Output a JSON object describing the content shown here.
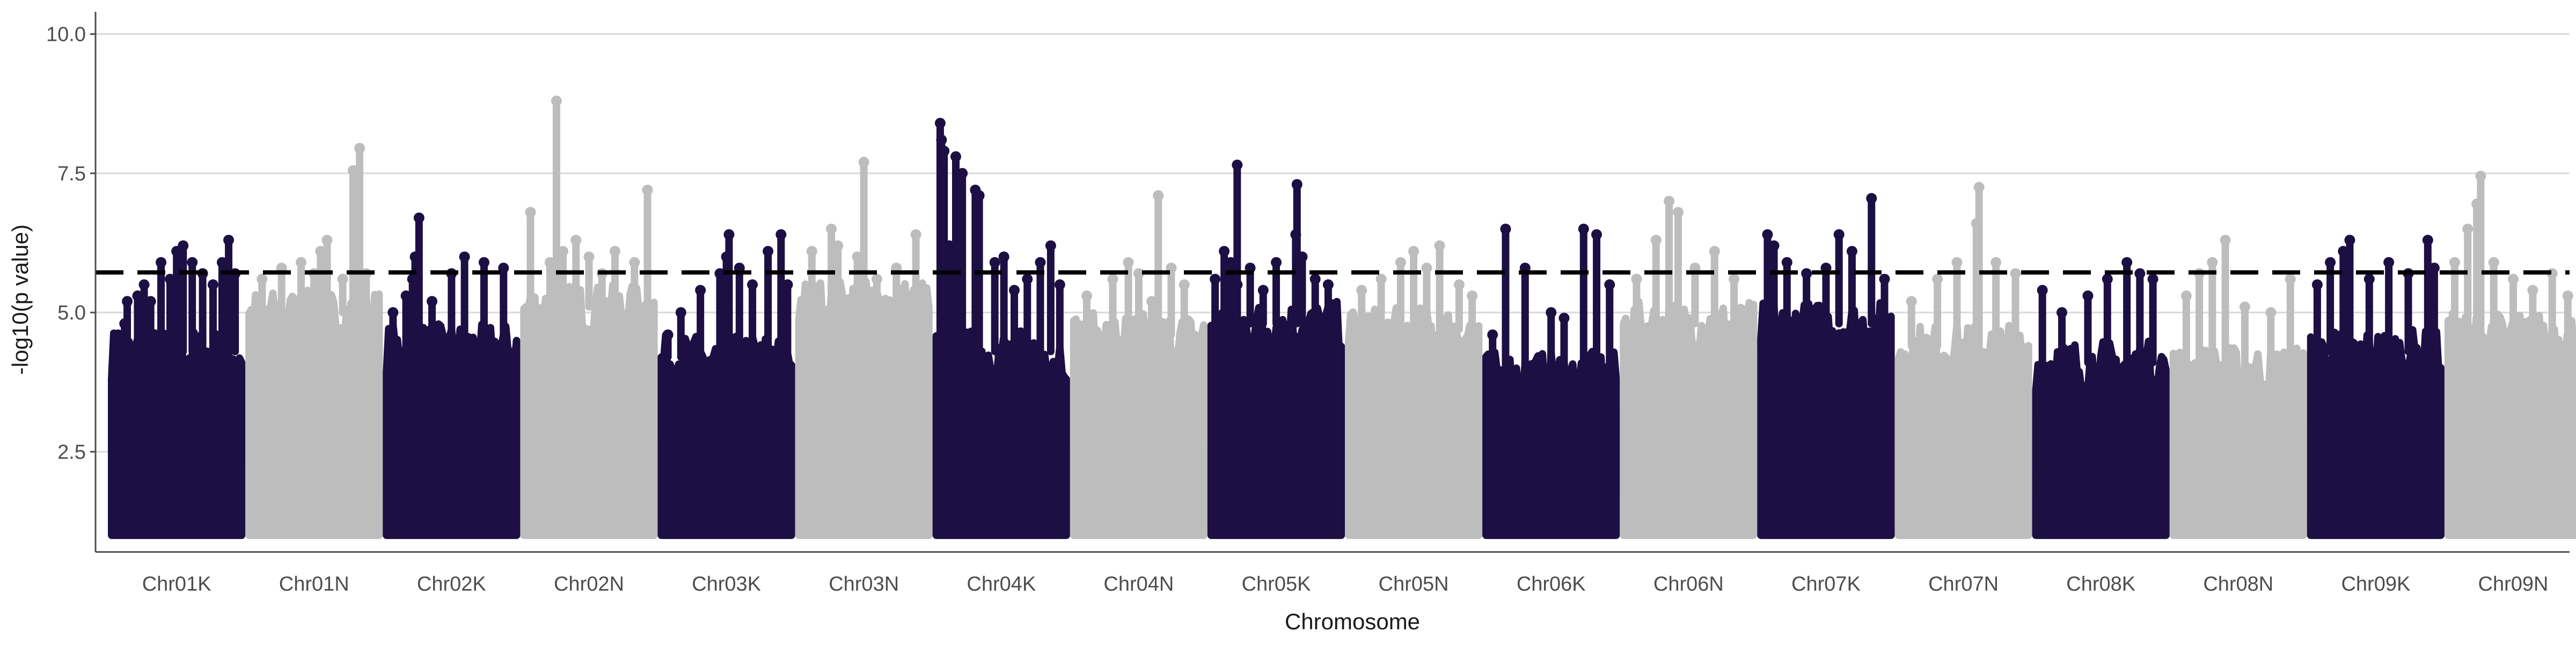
{
  "chart_data": {
    "type": "scatter",
    "subtype": "manhattan",
    "title": "",
    "xlabel": "Chromosome",
    "ylabel": "-log10(p value)",
    "ylim": [
      0.7,
      10.4
    ],
    "yticks": [
      2.5,
      5.0,
      7.5,
      10.0
    ],
    "ytick_labels": [
      "2.5",
      "5.0",
      "7.5",
      "10.0"
    ],
    "grid": "horizontal major gridlines on",
    "legend": "none",
    "colors": {
      "K": "#1c0f43",
      "N": "#bdbdbd",
      "threshold_line": "#000000",
      "grid": "#d9d9d9",
      "axis": "#4d4d4d"
    },
    "threshold": {
      "value": 5.72,
      "style": "dashed"
    },
    "floor": 1.0,
    "chromosomes": [
      {
        "label": "Chr01K",
        "group": "K",
        "body": 4.3,
        "hits": [
          [
            0.05,
            4.6
          ],
          [
            0.1,
            4.8
          ],
          [
            0.12,
            5.2
          ],
          [
            0.2,
            5.3
          ],
          [
            0.25,
            5.5
          ],
          [
            0.3,
            5.2
          ],
          [
            0.38,
            5.9
          ],
          [
            0.45,
            5.6
          ],
          [
            0.5,
            6.1
          ],
          [
            0.55,
            6.2
          ],
          [
            0.62,
            5.9
          ],
          [
            0.7,
            5.7
          ],
          [
            0.78,
            5.5
          ],
          [
            0.85,
            5.9
          ],
          [
            0.9,
            6.3
          ],
          [
            0.95,
            5.7
          ]
        ]
      },
      {
        "label": "Chr01N",
        "group": "N",
        "body": 5.0,
        "hits": [
          [
            0.1,
            5.6
          ],
          [
            0.25,
            5.8
          ],
          [
            0.4,
            5.9
          ],
          [
            0.5,
            5.7
          ],
          [
            0.55,
            6.1
          ],
          [
            0.6,
            6.3
          ],
          [
            0.72,
            5.6
          ],
          [
            0.8,
            7.55
          ],
          [
            0.85,
            7.95
          ],
          [
            0.9,
            5.7
          ]
        ]
      },
      {
        "label": "Chr02K",
        "group": "K",
        "body": 4.4,
        "hits": [
          [
            0.05,
            5.0
          ],
          [
            0.15,
            5.3
          ],
          [
            0.2,
            5.6
          ],
          [
            0.22,
            6.0
          ],
          [
            0.25,
            6.7
          ],
          [
            0.35,
            5.2
          ],
          [
            0.5,
            5.7
          ],
          [
            0.6,
            6.0
          ],
          [
            0.75,
            5.9
          ],
          [
            0.9,
            5.8
          ]
        ]
      },
      {
        "label": "Chr02N",
        "group": "N",
        "body": 5.1,
        "hits": [
          [
            0.05,
            6.8
          ],
          [
            0.2,
            5.9
          ],
          [
            0.3,
            6.1
          ],
          [
            0.4,
            6.3
          ],
          [
            0.5,
            6.0
          ],
          [
            0.6,
            5.7
          ],
          [
            0.7,
            6.1
          ],
          [
            0.85,
            5.9
          ],
          [
            0.95,
            7.2
          ]
        ]
      },
      {
        "label": "Chr02N",
        "group": "N",
        "skip": true,
        "body": 0,
        "hits": [
          [
            0.25,
            8.8
          ]
        ]
      },
      {
        "label": "Chr03K",
        "group": "K",
        "body": 4.2,
        "hits": [
          [
            0.05,
            4.6
          ],
          [
            0.15,
            5.0
          ],
          [
            0.3,
            5.4
          ],
          [
            0.45,
            5.7
          ],
          [
            0.5,
            6.0
          ],
          [
            0.52,
            6.4
          ],
          [
            0.6,
            5.8
          ],
          [
            0.7,
            5.5
          ],
          [
            0.82,
            6.1
          ],
          [
            0.92,
            6.4
          ],
          [
            0.97,
            5.5
          ]
        ]
      },
      {
        "label": "Chr03N",
        "group": "N",
        "body": 5.2,
        "hits": [
          [
            0.1,
            6.1
          ],
          [
            0.25,
            6.5
          ],
          [
            0.3,
            6.2
          ],
          [
            0.45,
            6.0
          ],
          [
            0.5,
            7.7
          ],
          [
            0.6,
            5.6
          ],
          [
            0.75,
            5.8
          ],
          [
            0.9,
            6.4
          ]
        ]
      },
      {
        "label": "Chr04K",
        "group": "K",
        "body": 4.3,
        "hits": [
          [
            0.03,
            8.4
          ],
          [
            0.04,
            8.1
          ],
          [
            0.06,
            7.9
          ],
          [
            0.1,
            6.2
          ],
          [
            0.15,
            7.8
          ],
          [
            0.2,
            7.5
          ],
          [
            0.3,
            7.2
          ],
          [
            0.33,
            7.1
          ],
          [
            0.45,
            5.9
          ],
          [
            0.52,
            6.0
          ],
          [
            0.6,
            5.4
          ],
          [
            0.7,
            5.6
          ],
          [
            0.8,
            5.9
          ],
          [
            0.88,
            6.2
          ],
          [
            0.95,
            5.5
          ]
        ]
      },
      {
        "label": "Chr04N",
        "group": "N",
        "body": 4.6,
        "hits": [
          [
            0.1,
            5.3
          ],
          [
            0.3,
            5.6
          ],
          [
            0.42,
            5.9
          ],
          [
            0.5,
            5.7
          ],
          [
            0.6,
            5.2
          ],
          [
            0.65,
            7.1
          ],
          [
            0.75,
            5.8
          ],
          [
            0.85,
            5.5
          ]
        ]
      },
      {
        "label": "Chr05K",
        "group": "K",
        "body": 4.8,
        "hits": [
          [
            0.03,
            5.6
          ],
          [
            0.1,
            6.1
          ],
          [
            0.15,
            5.9
          ],
          [
            0.2,
            5.5
          ],
          [
            0.3,
            5.8
          ],
          [
            0.4,
            5.4
          ],
          [
            0.5,
            5.9
          ],
          [
            0.65,
            6.4
          ],
          [
            0.66,
            7.3
          ],
          [
            0.7,
            6.0
          ],
          [
            0.8,
            5.6
          ],
          [
            0.9,
            5.5
          ]
        ]
      },
      {
        "label": "Chr05K",
        "group": "K",
        "skip": true,
        "body": 0,
        "hits": [
          [
            0.2,
            7.65
          ]
        ]
      },
      {
        "label": "Chr05N",
        "group": "N",
        "body": 4.7,
        "hits": [
          [
            0.1,
            5.4
          ],
          [
            0.25,
            5.6
          ],
          [
            0.4,
            5.9
          ],
          [
            0.5,
            6.1
          ],
          [
            0.6,
            5.8
          ],
          [
            0.7,
            6.2
          ],
          [
            0.85,
            5.5
          ],
          [
            0.95,
            5.3
          ]
        ]
      },
      {
        "label": "Chr06K",
        "group": "K",
        "body": 3.9,
        "hits": [
          [
            0.05,
            4.6
          ],
          [
            0.15,
            6.5
          ],
          [
            0.3,
            5.8
          ],
          [
            0.5,
            5.0
          ],
          [
            0.6,
            4.9
          ],
          [
            0.75,
            6.5
          ],
          [
            0.85,
            6.4
          ],
          [
            0.95,
            5.5
          ]
        ]
      },
      {
        "label": "Chr06N",
        "group": "N",
        "body": 4.8,
        "hits": [
          [
            0.1,
            5.6
          ],
          [
            0.25,
            6.3
          ],
          [
            0.35,
            7.0
          ],
          [
            0.42,
            6.8
          ],
          [
            0.55,
            5.8
          ],
          [
            0.7,
            6.1
          ],
          [
            0.85,
            5.6
          ]
        ]
      },
      {
        "label": "Chr07K",
        "group": "K",
        "body": 4.8,
        "hits": [
          [
            0.05,
            6.4
          ],
          [
            0.1,
            6.2
          ],
          [
            0.2,
            5.9
          ],
          [
            0.35,
            5.7
          ],
          [
            0.5,
            5.8
          ],
          [
            0.6,
            6.4
          ],
          [
            0.7,
            6.1
          ],
          [
            0.85,
            7.05
          ],
          [
            0.95,
            5.6
          ]
        ]
      },
      {
        "label": "Chr07N",
        "group": "N",
        "body": 4.4,
        "hits": [
          [
            0.1,
            5.2
          ],
          [
            0.3,
            5.6
          ],
          [
            0.45,
            5.9
          ],
          [
            0.6,
            6.6
          ],
          [
            0.62,
            7.25
          ],
          [
            0.75,
            5.9
          ],
          [
            0.9,
            5.7
          ]
        ]
      },
      {
        "label": "Chr08K",
        "group": "K",
        "body": 4.1,
        "hits": [
          [
            0.05,
            5.4
          ],
          [
            0.2,
            5.0
          ],
          [
            0.4,
            5.3
          ],
          [
            0.55,
            5.6
          ],
          [
            0.7,
            5.9
          ],
          [
            0.8,
            5.7
          ],
          [
            0.9,
            5.6
          ]
        ]
      },
      {
        "label": "Chr08N",
        "group": "N",
        "body": 4.0,
        "hits": [
          [
            0.1,
            5.3
          ],
          [
            0.2,
            5.7
          ],
          [
            0.3,
            5.9
          ],
          [
            0.4,
            6.3
          ],
          [
            0.55,
            5.1
          ],
          [
            0.75,
            5.0
          ],
          [
            0.9,
            5.6
          ]
        ]
      },
      {
        "label": "Chr09K",
        "group": "K",
        "body": 4.3,
        "hits": [
          [
            0.05,
            5.5
          ],
          [
            0.15,
            5.9
          ],
          [
            0.25,
            6.1
          ],
          [
            0.3,
            6.3
          ],
          [
            0.45,
            5.6
          ],
          [
            0.6,
            5.9
          ],
          [
            0.75,
            5.7
          ],
          [
            0.9,
            6.3
          ],
          [
            0.95,
            5.8
          ]
        ]
      },
      {
        "label": "Chr09N",
        "group": "N",
        "body": 4.6,
        "hits": [
          [
            0.05,
            5.9
          ],
          [
            0.15,
            6.5
          ],
          [
            0.22,
            6.95
          ],
          [
            0.25,
            7.45
          ],
          [
            0.35,
            5.9
          ],
          [
            0.5,
            5.6
          ],
          [
            0.65,
            5.4
          ],
          [
            0.8,
            5.7
          ],
          [
            0.92,
            5.3
          ]
        ]
      }
    ]
  }
}
